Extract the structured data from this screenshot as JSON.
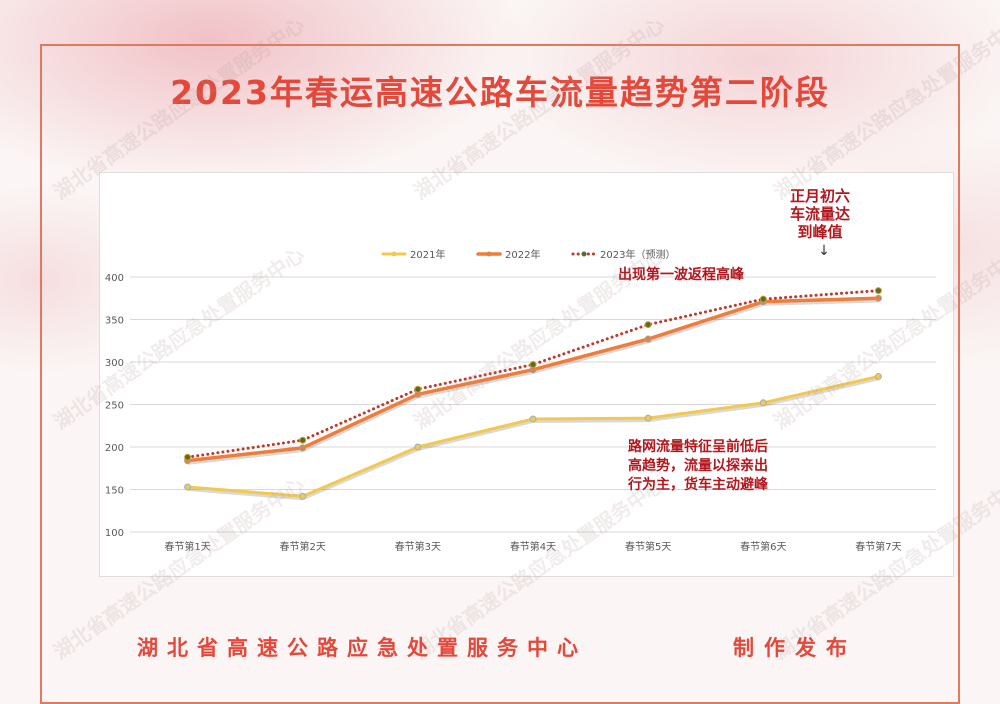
{
  "title": "2023年春运高速公路车流量趋势第二阶段",
  "footer": {
    "org": "湖北省高速公路应急处置服务中心",
    "release": "制作发布"
  },
  "watermark": "湖北省高速公路应急处置服务中心",
  "colors": {
    "title": "#e3483a",
    "s2021": "#f2c94c",
    "s2022": "#ee7d3a",
    "s2023": "#c0392b",
    "s2023_markers": "#556b2f",
    "annotation": "#b3171d"
  },
  "chart_data": {
    "type": "line",
    "categories": [
      "春节第1天",
      "春节第2天",
      "春节第3天",
      "春节第4天",
      "春节第5天",
      "春节第6天",
      "春节第7天"
    ],
    "y_ticks": [
      100,
      150,
      200,
      250,
      300,
      350,
      400
    ],
    "ylim": [
      100,
      400
    ],
    "grid": true,
    "legend_position": "top",
    "series": [
      {
        "name": "2021年",
        "style": "solid-light",
        "values": [
          153,
          142,
          200,
          233,
          234,
          252,
          283
        ]
      },
      {
        "name": "2022年",
        "style": "solid-thick",
        "values": [
          184,
          199,
          262,
          291,
          327,
          371,
          375
        ]
      },
      {
        "name": "2023年（预测）",
        "style": "dotted",
        "values": [
          188,
          208,
          268,
          297,
          344,
          374,
          384
        ]
      }
    ],
    "annotations": [
      {
        "text": "正月初六\n车流量达\n到峰值",
        "arrow": "↓"
      },
      {
        "text": "出现第一波返程高峰"
      },
      {
        "text": "路网流量特征呈前低后\n高趋势，流量以探亲出\n行为主，货车主动避峰"
      }
    ]
  }
}
